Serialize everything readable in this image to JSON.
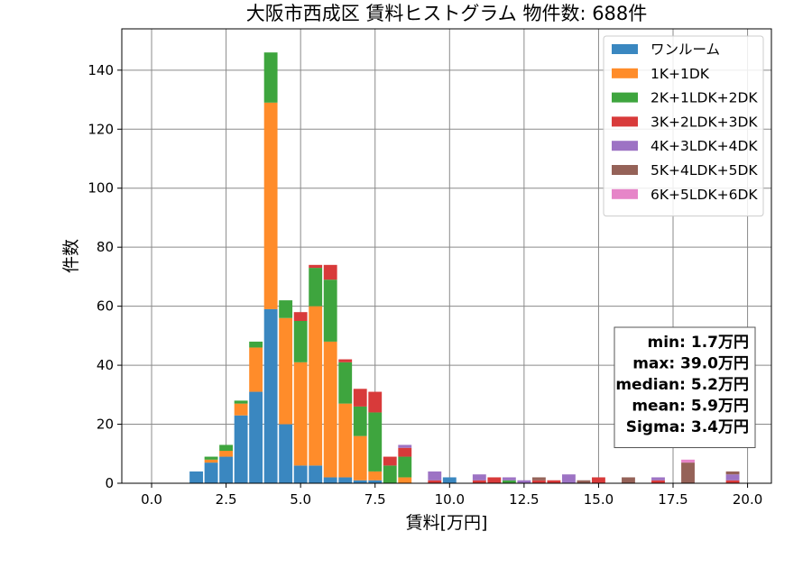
{
  "chart_data": {
    "type": "bar",
    "stacked": true,
    "title": "大阪市西成区 賃料ヒストグラム  物件数: 688件",
    "xlabel": "賃料[万円]",
    "ylabel": "件数",
    "xlim": [
      -1.0,
      20.8
    ],
    "ylim": [
      0,
      154
    ],
    "xticks": [
      0,
      2.5,
      5,
      7.5,
      10,
      12.5,
      15,
      17.5,
      20
    ],
    "xtick_labels": [
      "0.0",
      "2.5",
      "5.0",
      "7.5",
      "10.0",
      "12.5",
      "15.0",
      "17.5",
      "20.0"
    ],
    "yticks": [
      0,
      20,
      40,
      60,
      80,
      100,
      120,
      140
    ],
    "ytick_labels": [
      "0",
      "20",
      "40",
      "60",
      "80",
      "100",
      "120",
      "140"
    ],
    "grid": true,
    "legend_position": "top-right",
    "bin_width": 0.5,
    "x": [
      1.5,
      2.0,
      2.5,
      3.0,
      3.5,
      4.0,
      4.5,
      5.0,
      5.5,
      6.0,
      6.5,
      7.0,
      7.5,
      8.0,
      8.5,
      9.5,
      10.0,
      11.0,
      11.5,
      12.0,
      12.5,
      13.0,
      13.5,
      14.0,
      14.5,
      15.0,
      16.0,
      17.0,
      18.0,
      19.5
    ],
    "series": [
      {
        "name": "ワンルーム",
        "color": "#3a87c0",
        "values": [
          4,
          7,
          9,
          23,
          31,
          59,
          20,
          6,
          6,
          2,
          2,
          1,
          1,
          0,
          0,
          0,
          2,
          0,
          0,
          0,
          0,
          0,
          0,
          0,
          0,
          0,
          0,
          0,
          0,
          0
        ]
      },
      {
        "name": "1K+1DK",
        "color": "#ff8c2a",
        "values": [
          0,
          1,
          2,
          4,
          15,
          70,
          36,
          35,
          54,
          46,
          25,
          15,
          3,
          0,
          2,
          0,
          0,
          0,
          0,
          0,
          0,
          0,
          0,
          0,
          0,
          0,
          0,
          0,
          0,
          0
        ]
      },
      {
        "name": "2K+1LDK+2DK",
        "color": "#3ea53e",
        "values": [
          0,
          1,
          2,
          1,
          2,
          17,
          6,
          14,
          13,
          21,
          14,
          10,
          20,
          6,
          7,
          0,
          0,
          0,
          0,
          1,
          0,
          0,
          0,
          0,
          0,
          0,
          0,
          0,
          0,
          0
        ]
      },
      {
        "name": "3K+2LDK+3DK",
        "color": "#d83a3a",
        "values": [
          0,
          0,
          0,
          0,
          0,
          0,
          0,
          3,
          1,
          5,
          1,
          6,
          7,
          3,
          3,
          1,
          0,
          1,
          2,
          0,
          0,
          1,
          1,
          0,
          0,
          2,
          0,
          1,
          0,
          1
        ]
      },
      {
        "name": "4K+3LDK+4DK",
        "color": "#9d73c4",
        "values": [
          0,
          0,
          0,
          0,
          0,
          0,
          0,
          0,
          0,
          0,
          0,
          0,
          0,
          0,
          1,
          3,
          0,
          2,
          0,
          1,
          1,
          0,
          0,
          3,
          0,
          0,
          0,
          1,
          0,
          2
        ]
      },
      {
        "name": "5K+4LDK+5DK",
        "color": "#956258",
        "values": [
          0,
          0,
          0,
          0,
          0,
          0,
          0,
          0,
          0,
          0,
          0,
          0,
          0,
          0,
          0,
          0,
          0,
          0,
          0,
          0,
          0,
          1,
          0,
          0,
          1,
          0,
          2,
          0,
          7,
          1
        ]
      },
      {
        "name": "6K+5LDK+6DK",
        "color": "#e685c8",
        "values": [
          0,
          0,
          0,
          0,
          0,
          0,
          0,
          0,
          0,
          0,
          0,
          0,
          0,
          0,
          0,
          0,
          0,
          0,
          0,
          0,
          0,
          0,
          0,
          0,
          0,
          0,
          0,
          0,
          1,
          0
        ]
      }
    ],
    "annotations": [
      "min: 1.7万円",
      "max: 39.0万円",
      "median: 5.2万円",
      "mean: 5.9万円",
      "Sigma: 3.4万円"
    ]
  }
}
